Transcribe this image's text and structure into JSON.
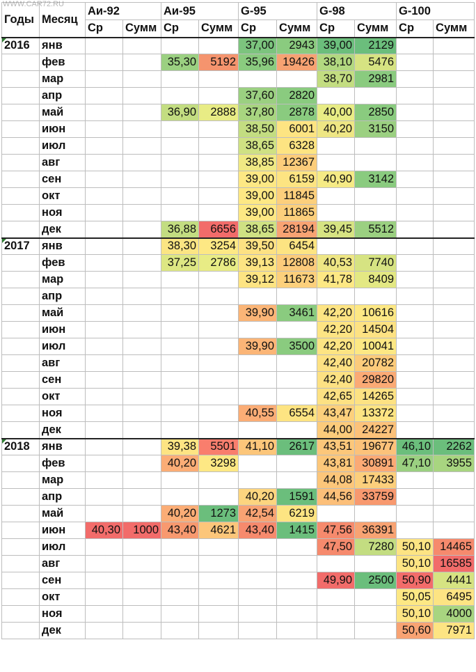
{
  "watermark": "WWW.CAR72.RU",
  "watermark2": "CAR72.RU",
  "header": {
    "years_label": "Годы",
    "month_label": "Месяц",
    "fuels": [
      "Аи-92",
      "Аи-95",
      "G-95",
      "G-98",
      "G-100"
    ],
    "sub": [
      "Ср",
      "Сумм"
    ]
  },
  "rows": [
    {
      "year": "2016",
      "month": "янв",
      "v": [
        "",
        "",
        "",
        "",
        "37,00",
        "2943",
        "39,00",
        "2129",
        "",
        ""
      ],
      "c": [
        "",
        "",
        "",
        "",
        "#7cc47e",
        "#8acb7f",
        "#6bbe7c",
        "#6bbe7c",
        "",
        ""
      ]
    },
    {
      "year": "",
      "month": "фев",
      "v": [
        "",
        "",
        "35,30",
        "5192",
        "35,96",
        "19426",
        "38,10",
        "5476",
        "",
        ""
      ],
      "c": [
        "",
        "",
        "#9bd081",
        "#f5946e",
        "#8acb7f",
        "#f7a272",
        "#b2d880",
        "#d6e382",
        "",
        ""
      ]
    },
    {
      "year": "",
      "month": "мар",
      "v": [
        "",
        "",
        "",
        "",
        "",
        "",
        "38,70",
        "2981",
        "",
        ""
      ],
      "c": [
        "",
        "",
        "",
        "",
        "",
        "",
        "#c3dd81",
        "#8acb7f",
        "",
        ""
      ]
    },
    {
      "year": "",
      "month": "апр",
      "v": [
        "",
        "",
        "",
        "",
        "37,60",
        "2820",
        "",
        "",
        "",
        ""
      ],
      "c": [
        "",
        "",
        "",
        "",
        "#9bd081",
        "#8acb7f",
        "",
        "",
        "",
        ""
      ]
    },
    {
      "year": "",
      "month": "май",
      "v": [
        "",
        "",
        "36,90",
        "2888",
        "37,80",
        "2878",
        "40,00",
        "2850",
        "",
        ""
      ],
      "c": [
        "",
        "",
        "#c3dd81",
        "#e8ec85",
        "#a8d580",
        "#8acb7f",
        "#e8ec85",
        "#8acb7f",
        "",
        ""
      ]
    },
    {
      "year": "",
      "month": "июн",
      "v": [
        "",
        "",
        "",
        "",
        "38,50",
        "6001",
        "40,20",
        "3150",
        "",
        ""
      ],
      "c": [
        "",
        "",
        "",
        "",
        "#c3dd81",
        "#fde482",
        "#eee684",
        "#9bd081",
        "",
        ""
      ]
    },
    {
      "year": "",
      "month": "июл",
      "v": [
        "",
        "",
        "",
        "",
        "38,65",
        "6328",
        "",
        "",
        "",
        ""
      ],
      "c": [
        "",
        "",
        "",
        "",
        "#cfe183",
        "#fde482",
        "",
        "",
        "",
        ""
      ]
    },
    {
      "year": "",
      "month": "авг",
      "v": [
        "",
        "",
        "",
        "",
        "38,85",
        "12367",
        "",
        "",
        "",
        ""
      ],
      "c": [
        "",
        "",
        "",
        "",
        "#f0e984",
        "#fccd7b",
        "",
        "",
        "",
        ""
      ]
    },
    {
      "year": "",
      "month": "сен",
      "v": [
        "",
        "",
        "",
        "",
        "39,00",
        "6159",
        "40,90",
        "3142",
        "",
        ""
      ],
      "c": [
        "",
        "",
        "",
        "",
        "#fde884",
        "#fde482",
        "#f5ea85",
        "#8acb7f",
        "",
        ""
      ]
    },
    {
      "year": "",
      "month": "окт",
      "v": [
        "",
        "",
        "",
        "",
        "39,00",
        "11845",
        "",
        "",
        "",
        ""
      ],
      "c": [
        "",
        "",
        "",
        "",
        "#fde884",
        "#fccf7c",
        "",
        "",
        "",
        ""
      ]
    },
    {
      "year": "",
      "month": "ноя",
      "v": [
        "",
        "",
        "",
        "",
        "39,00",
        "11865",
        "",
        "",
        "",
        ""
      ],
      "c": [
        "",
        "",
        "",
        "",
        "#fde884",
        "#fccf7c",
        "",
        "",
        "",
        ""
      ]
    },
    {
      "year": "",
      "month": "дек",
      "v": [
        "",
        "",
        "36,88",
        "6656",
        "38,65",
        "28194",
        "39,45",
        "5512",
        "",
        ""
      ],
      "c": [
        "",
        "",
        "#c3dd81",
        "#f26c6a",
        "#cfe183",
        "#f8a373",
        "#d6e382",
        "#9bd081",
        "",
        ""
      ]
    },
    {
      "year": "2017",
      "month": "янв",
      "v": [
        "",
        "",
        "38,30",
        "3254",
        "39,50",
        "6454",
        "",
        "",
        "",
        ""
      ],
      "c": [
        "",
        "",
        "#fbe583",
        "#fde884",
        "#fde183",
        "#fde482",
        "",
        "",
        "",
        ""
      ]
    },
    {
      "year": "",
      "month": "фев",
      "v": [
        "",
        "",
        "37,25",
        "2786",
        "39,13",
        "12808",
        "40,53",
        "7740",
        "",
        ""
      ],
      "c": [
        "",
        "",
        "#dde783",
        "#e8ec85",
        "#fde483",
        "#fccb7b",
        "#eee684",
        "#d6e382",
        "",
        ""
      ]
    },
    {
      "year": "",
      "month": "мар",
      "v": [
        "",
        "",
        "",
        "",
        "39,12",
        "11673",
        "41,78",
        "8409",
        "",
        ""
      ],
      "c": [
        "",
        "",
        "",
        "",
        "#fde483",
        "#fcd07c",
        "#fde884",
        "#e3e883",
        "",
        ""
      ]
    },
    {
      "year": "",
      "month": "апр",
      "v": [
        "",
        "",
        "",
        "",
        "",
        "",
        "",
        "",
        "",
        ""
      ],
      "c": [
        "",
        "",
        "",
        "",
        "",
        "",
        "",
        "",
        "",
        ""
      ]
    },
    {
      "year": "",
      "month": "май",
      "v": [
        "",
        "",
        "",
        "",
        "39,90",
        "3461",
        "42,20",
        "10616",
        "",
        ""
      ],
      "c": [
        "",
        "",
        "",
        "",
        "#fbb577",
        "#8acb7f",
        "#fde483",
        "#fde884",
        "",
        ""
      ]
    },
    {
      "year": "",
      "month": "июн",
      "v": [
        "",
        "",
        "",
        "",
        "",
        "",
        "42,20",
        "14504",
        "",
        ""
      ],
      "c": [
        "",
        "",
        "",
        "",
        "",
        "",
        "#fde483",
        "#fde283",
        "",
        ""
      ]
    },
    {
      "year": "",
      "month": "июл",
      "v": [
        "",
        "",
        "",
        "",
        "39,90",
        "3500",
        "42,20",
        "10041",
        "",
        ""
      ],
      "c": [
        "",
        "",
        "",
        "",
        "#fbb577",
        "#8acb7f",
        "#fde483",
        "#fde884",
        "",
        ""
      ]
    },
    {
      "year": "",
      "month": "авг",
      "v": [
        "",
        "",
        "",
        "",
        "",
        "",
        "42,40",
        "20782",
        "",
        ""
      ],
      "c": [
        "",
        "",
        "",
        "",
        "",
        "",
        "#fde183",
        "#fccb7b",
        "",
        ""
      ]
    },
    {
      "year": "",
      "month": "сен",
      "v": [
        "",
        "",
        "",
        "",
        "",
        "",
        "42,40",
        "29820",
        "",
        ""
      ],
      "c": [
        "",
        "",
        "",
        "",
        "",
        "",
        "#fde183",
        "#fbaa75",
        "",
        ""
      ]
    },
    {
      "year": "",
      "month": "окт",
      "v": [
        "",
        "",
        "",
        "",
        "",
        "",
        "42,65",
        "14265",
        "",
        ""
      ],
      "c": [
        "",
        "",
        "",
        "",
        "",
        "",
        "#fde183",
        "#fde283",
        "",
        ""
      ]
    },
    {
      "year": "",
      "month": "ноя",
      "v": [
        "",
        "",
        "",
        "",
        "40,55",
        "6554",
        "43,47",
        "13372",
        "",
        ""
      ],
      "c": [
        "",
        "",
        "",
        "",
        "#fbad76",
        "#fde482",
        "#fcd07c",
        "#fde483",
        "",
        ""
      ]
    },
    {
      "year": "",
      "month": "дек",
      "v": [
        "",
        "",
        "",
        "",
        "",
        "",
        "44,00",
        "24227",
        "",
        ""
      ],
      "c": [
        "",
        "",
        "",
        "",
        "",
        "",
        "#fccb7b",
        "#fcc27a",
        "",
        ""
      ]
    },
    {
      "year": "2018",
      "month": "янв",
      "v": [
        "",
        "",
        "39,38",
        "5501",
        "41,10",
        "2617",
        "43,51",
        "19677",
        "46,10",
        "2262"
      ],
      "c": [
        "",
        "",
        "#fde483",
        "#f97e6d",
        "#fcc67a",
        "#6bbe7c",
        "#fcc77a",
        "#fcc27a",
        "#6bbe7c",
        "#6bbe7c"
      ]
    },
    {
      "year": "",
      "month": "фев",
      "v": [
        "",
        "",
        "40,20",
        "3298",
        "",
        "",
        "43,81",
        "30891",
        "47,10",
        "3955"
      ],
      "c": [
        "",
        "",
        "#fbad76",
        "#fde884",
        "",
        "",
        "#fcc77a",
        "#fbaa75",
        "#9bd081",
        "#a8d580"
      ]
    },
    {
      "year": "",
      "month": "мар",
      "v": [
        "",
        "",
        "",
        "",
        "",
        "",
        "44,08",
        "17433",
        "",
        ""
      ],
      "c": [
        "",
        "",
        "",
        "",
        "",
        "",
        "#fcc67a",
        "#fccf7c",
        "",
        ""
      ]
    },
    {
      "year": "",
      "month": "апр",
      "v": [
        "",
        "",
        "",
        "",
        "40,20",
        "1591",
        "44,56",
        "33759",
        "",
        ""
      ],
      "c": [
        "",
        "",
        "",
        "",
        "#fcd57f",
        "#6bbe7c",
        "#fcbf79",
        "#f8996f",
        "",
        ""
      ]
    },
    {
      "year": "",
      "month": "май",
      "v": [
        "",
        "",
        "40,20",
        "1273",
        "42,54",
        "6219",
        "",
        "",
        "",
        ""
      ],
      "c": [
        "",
        "",
        "#fbad76",
        "#6bbe7c",
        "#f8a373",
        "#fde482",
        "",
        "",
        "",
        ""
      ]
    },
    {
      "year": "",
      "month": "июн",
      "v": [
        "40,30",
        "1000",
        "43,40",
        "4621",
        "43,40",
        "1415",
        "47,56",
        "36391",
        "",
        ""
      ],
      "c": [
        "#f26c6a",
        "#f26c6a",
        "#f8996f",
        "#fcc67a",
        "#f68a6d",
        "#6bbe7c",
        "#f68a6d",
        "#f8a373",
        "",
        ""
      ]
    },
    {
      "year": "",
      "month": "июл",
      "v": [
        "",
        "",
        "",
        "",
        "",
        "",
        "47,50",
        "7280",
        "50,10",
        "14465"
      ],
      "c": [
        "",
        "",
        "",
        "",
        "",
        "",
        "#f68a6d",
        "#c3dd81",
        "#fde483",
        "#f68a6d"
      ]
    },
    {
      "year": "",
      "month": "авг",
      "v": [
        "",
        "",
        "",
        "",
        "",
        "",
        "",
        "",
        "50,10",
        "16585"
      ],
      "c": [
        "",
        "",
        "",
        "",
        "",
        "",
        "",
        "",
        "#fde483",
        "#f26c6a"
      ]
    },
    {
      "year": "",
      "month": "сен",
      "v": [
        "",
        "",
        "",
        "",
        "",
        "",
        "49,90",
        "2500",
        "50,90",
        "4441"
      ],
      "c": [
        "",
        "",
        "",
        "",
        "",
        "",
        "#f26c6a",
        "#6bbe7c",
        "#f26c6a",
        "#d6e382"
      ]
    },
    {
      "year": "",
      "month": "окт",
      "v": [
        "",
        "",
        "",
        "",
        "",
        "",
        "",
        "",
        "50,05",
        "6495"
      ],
      "c": [
        "",
        "",
        "",
        "",
        "",
        "",
        "",
        "",
        "#fde884",
        "#fde483"
      ]
    },
    {
      "year": "",
      "month": "ноя",
      "v": [
        "",
        "",
        "",
        "",
        "",
        "",
        "",
        "",
        "50,10",
        "4000"
      ],
      "c": [
        "",
        "",
        "",
        "",
        "",
        "",
        "",
        "",
        "#fde483",
        "#a8d580"
      ]
    },
    {
      "year": "",
      "month": "дек",
      "v": [
        "",
        "",
        "",
        "",
        "",
        "",
        "",
        "",
        "50,60",
        "7971"
      ],
      "c": [
        "",
        "",
        "",
        "",
        "",
        "",
        "",
        "",
        "#f8a373",
        "#fde483"
      ]
    }
  ]
}
